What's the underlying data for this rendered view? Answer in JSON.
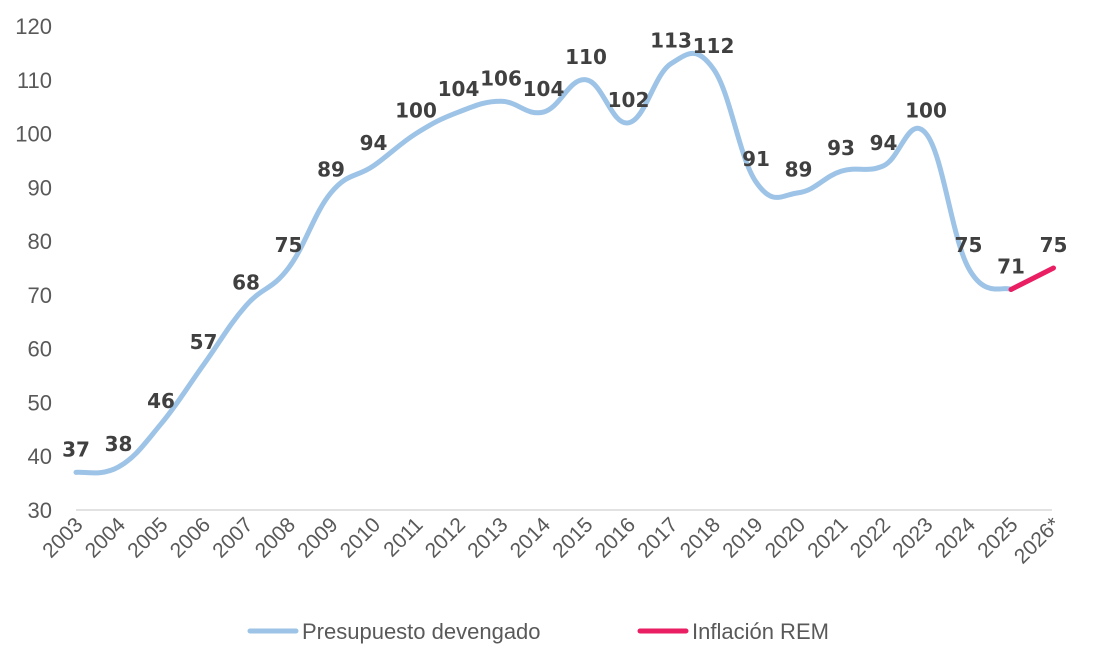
{
  "chart_data": {
    "type": "line",
    "title": "",
    "xlabel": "",
    "ylabel": "",
    "ylim": [
      30,
      120
    ],
    "yticks": [
      "30",
      "40",
      "50",
      "60",
      "70",
      "80",
      "90",
      "100",
      "110",
      "120"
    ],
    "categories": [
      "2003",
      "2004",
      "2005",
      "2006",
      "2007",
      "2008",
      "2009",
      "2010",
      "2011",
      "2012",
      "2013",
      "2014",
      "2015",
      "2016",
      "2017",
      "2018",
      "2019",
      "2020",
      "2021",
      "2022",
      "2023",
      "2024",
      "2025",
      "2026*"
    ],
    "series": [
      {
        "name": "Presupuesto devengado",
        "color": "#9DC3E6",
        "values": [
          37,
          38,
          46,
          57,
          68,
          75,
          89,
          94,
          100,
          104,
          106,
          104,
          110,
          102,
          113,
          112,
          91,
          89,
          93,
          94,
          100,
          75,
          71,
          null
        ],
        "labels": [
          "37",
          "38",
          "46",
          "57",
          "68",
          "75",
          "89",
          "94",
          "100",
          "104",
          "106",
          "104",
          "110",
          "102",
          "113",
          "112",
          "91",
          "89",
          "93",
          "94",
          "100",
          "75",
          "71",
          ""
        ]
      },
      {
        "name": "Inflación REM",
        "color": "#E91E63",
        "values": [
          null,
          null,
          null,
          null,
          null,
          null,
          null,
          null,
          null,
          null,
          null,
          null,
          null,
          null,
          null,
          null,
          null,
          null,
          null,
          null,
          null,
          null,
          71,
          75
        ],
        "labels": [
          "",
          "",
          "",
          "",
          "",
          "",
          "",
          "",
          "",
          "",
          "",
          "",
          "",
          "",
          "",
          "",
          "",
          "",
          "",
          "",
          "",
          "",
          "",
          "75"
        ]
      }
    ],
    "legend": "bottom",
    "grid": false
  }
}
